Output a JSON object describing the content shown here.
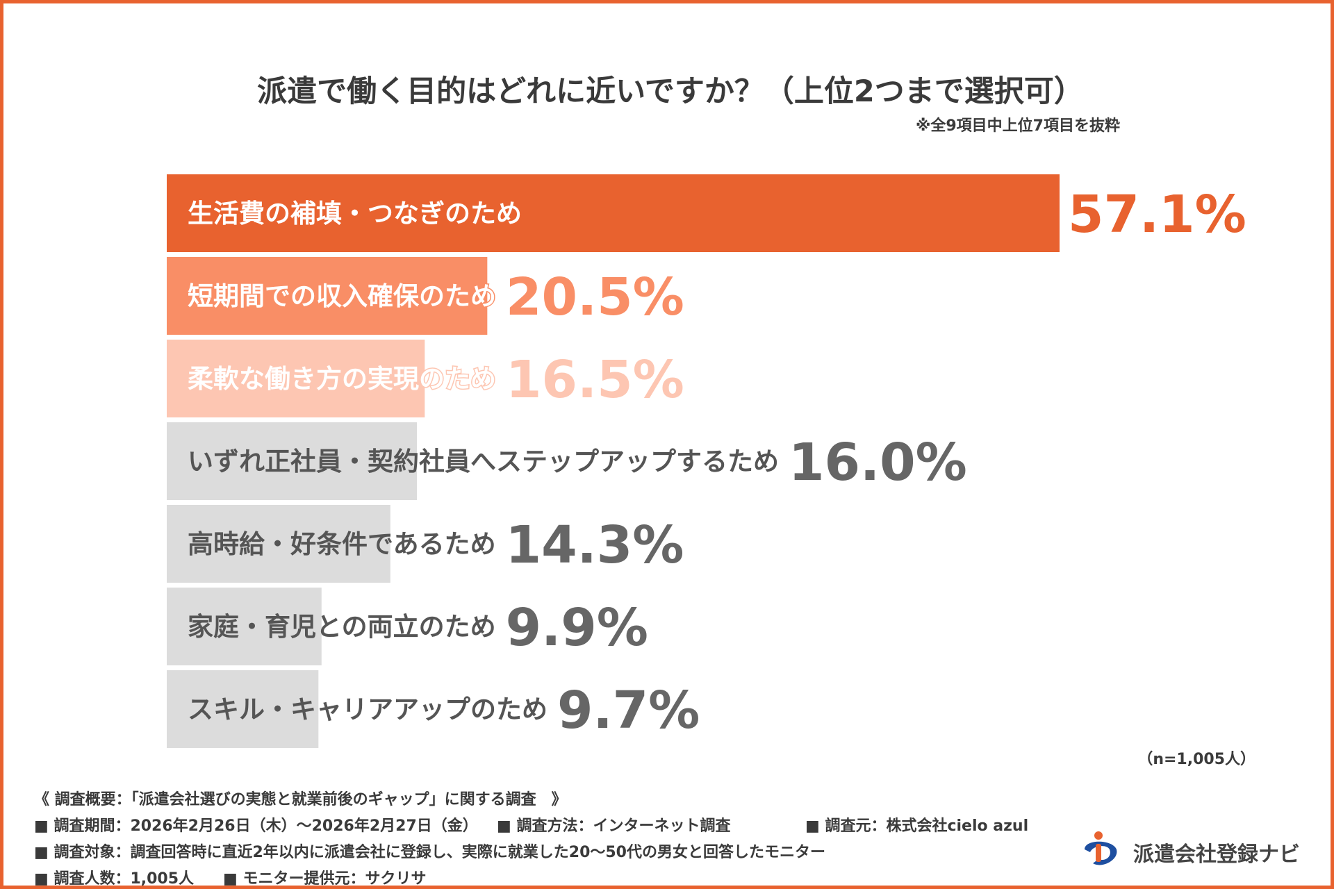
{
  "title": "派遣で働く目的はどれに近いですか？（上位2つまで選択可）",
  "subnote": "※全9項目中上位7項目を抜粋",
  "sample_note": "（n=1,005人）",
  "chart_data": {
    "type": "bar",
    "orientation": "horizontal",
    "title": "派遣で働く目的はどれに近いですか？（上位2つまで選択可）",
    "unit": "%",
    "categories": [
      "生活費の補填・つなぎのため",
      "短期間での収入確保のため",
      "柔軟な働き方の実現のため",
      "いずれ正社員・契約社員へステップアップするため",
      "高時給・好条件であるため",
      "家庭・育児との両立のため",
      "スキル・キャリアアップのため"
    ],
    "values": [
      57.1,
      20.5,
      16.5,
      16.0,
      14.3,
      9.9,
      9.7
    ],
    "value_labels": [
      "57.1%",
      "20.5%",
      "16.5%",
      "16.0%",
      "14.3%",
      "9.9%",
      "9.7%"
    ],
    "bar_colors": [
      "#E8622F",
      "#F98E66",
      "#FDC6B2",
      "#DCDCDC",
      "#DCDCDC",
      "#DCDCDC",
      "#DCDCDC"
    ],
    "value_colors": [
      "#E8622F",
      "#F98E66",
      "#FDC6B2",
      "#666666",
      "#666666",
      "#666666",
      "#666666"
    ],
    "label_colors": [
      "#ffffff",
      "#ffffff",
      "#ffffff",
      "#555555",
      "#555555",
      "#555555",
      "#555555"
    ],
    "xlim": [
      0,
      57.1
    ],
    "grid": false,
    "legend": "none"
  },
  "footer": {
    "line1": "《 調査概要：「派遣会社選びの実態と就業前後のギャップ」に関する調査　》",
    "line2a": "■ 調査期間：2026年2月26日（木）〜2026年2月27日（金）",
    "line2b": "■ 調査方法：インターネット調査",
    "line2c": "■ 調査元：株式会社cielo azul",
    "line3": "■ 調査対象：調査回答時に直近2年以内に派遣会社に登録し、実際に就業した20〜50代の男女と回答したモニター",
    "line4a": "■ 調査人数：1,005人",
    "line4b": "■ モニター提供元：サクリサ"
  },
  "logo": {
    "text": "派遣会社登録ナビ",
    "colors": {
      "blue": "#1E4FA0",
      "orange": "#E8622F"
    }
  }
}
